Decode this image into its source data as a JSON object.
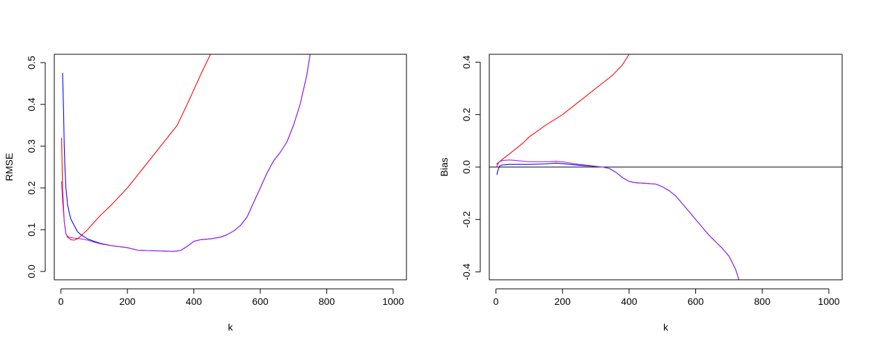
{
  "chart_data": [
    {
      "type": "line",
      "xlabel": "k",
      "ylabel": "RMSE",
      "xlim": [
        -20,
        1040
      ],
      "ylim": [
        -0.02,
        0.52
      ],
      "xticks": [
        0,
        200,
        400,
        600,
        800,
        1000
      ],
      "yticks": [
        0.0,
        0.1,
        0.2,
        0.3,
        0.4,
        0.5
      ],
      "xtick_labels": [
        "0",
        "200",
        "400",
        "600",
        "800",
        "1000"
      ],
      "ytick_labels": [
        "0.0",
        "0.1",
        "0.2",
        "0.3",
        "0.4",
        "0.5"
      ],
      "grid": false,
      "series": [
        {
          "color": "#ff0000",
          "x": [
            2,
            5,
            10,
            15,
            20,
            30,
            40,
            50,
            60,
            80,
            100,
            120,
            150,
            200,
            250,
            300,
            350,
            380,
            400,
            420,
            450
          ],
          "y": [
            0.32,
            0.2,
            0.12,
            0.09,
            0.082,
            0.076,
            0.075,
            0.078,
            0.085,
            0.1,
            0.118,
            0.135,
            0.158,
            0.2,
            0.25,
            0.3,
            0.35,
            0.4,
            0.435,
            0.47,
            0.52
          ]
        },
        {
          "color": "#0000ff",
          "x": [
            5,
            8,
            10,
            12,
            15,
            20,
            25,
            30,
            40,
            50,
            60,
            80,
            100,
            120,
            150,
            200,
            230,
            260,
            300,
            340,
            360,
            380,
            400,
            420,
            450,
            480,
            500,
            520,
            540,
            560,
            580,
            600,
            620,
            640,
            660,
            680,
            700,
            720,
            740,
            750
          ],
          "y": [
            0.475,
            0.38,
            0.3,
            0.25,
            0.2,
            0.16,
            0.14,
            0.125,
            0.11,
            0.095,
            0.088,
            0.078,
            0.072,
            0.067,
            0.062,
            0.057,
            0.051,
            0.05,
            0.049,
            0.048,
            0.05,
            0.06,
            0.072,
            0.076,
            0.078,
            0.082,
            0.088,
            0.097,
            0.11,
            0.13,
            0.165,
            0.2,
            0.235,
            0.265,
            0.285,
            0.31,
            0.35,
            0.4,
            0.47,
            0.52
          ]
        },
        {
          "color": "#a020f0",
          "x": [
            2,
            5,
            10,
            15,
            20,
            25,
            30,
            40,
            50,
            60,
            80,
            100,
            120,
            150,
            200,
            230,
            260,
            300,
            340,
            360,
            380,
            400,
            420,
            450,
            480,
            500,
            520,
            540,
            560,
            580,
            600,
            620,
            640,
            660,
            680,
            700,
            720,
            740,
            750
          ],
          "y": [
            0.215,
            0.17,
            0.12,
            0.09,
            0.084,
            0.082,
            0.081,
            0.08,
            0.079,
            0.078,
            0.075,
            0.07,
            0.066,
            0.062,
            0.057,
            0.051,
            0.05,
            0.049,
            0.048,
            0.05,
            0.06,
            0.072,
            0.076,
            0.078,
            0.082,
            0.088,
            0.097,
            0.11,
            0.13,
            0.165,
            0.2,
            0.235,
            0.265,
            0.285,
            0.31,
            0.35,
            0.4,
            0.47,
            0.52
          ]
        }
      ]
    },
    {
      "type": "line",
      "xlabel": "k",
      "ylabel": "Bias",
      "xlim": [
        -20,
        1040
      ],
      "ylim": [
        -0.43,
        0.43
      ],
      "xticks": [
        0,
        200,
        400,
        600,
        800,
        1000
      ],
      "yticks": [
        -0.4,
        -0.2,
        0.0,
        0.2,
        0.4
      ],
      "xtick_labels": [
        "0",
        "200",
        "400",
        "600",
        "800",
        "1000"
      ],
      "ytick_labels": [
        "-0.4",
        "-0.2",
        "0.0",
        "0.2",
        "0.4"
      ],
      "grid": false,
      "hline": 0,
      "series": [
        {
          "color": "#ff0000",
          "x": [
            2,
            5,
            10,
            20,
            30,
            50,
            80,
            100,
            150,
            200,
            250,
            300,
            350,
            380,
            400
          ],
          "y": [
            0.0,
            0.01,
            0.02,
            0.03,
            0.04,
            0.06,
            0.09,
            0.115,
            0.16,
            0.2,
            0.25,
            0.3,
            0.35,
            0.39,
            0.43
          ]
        },
        {
          "color": "#0000ff",
          "x": [
            3,
            5,
            8,
            12,
            20,
            40,
            60,
            100,
            150,
            180,
            200,
            250,
            300,
            320,
            340,
            360,
            380,
            400,
            420,
            450,
            480,
            500,
            520,
            540,
            560,
            580,
            600,
            620,
            640,
            660,
            680,
            700,
            720,
            730
          ],
          "y": [
            -0.03,
            -0.015,
            -0.005,
            0.005,
            0.008,
            0.01,
            0.01,
            0.01,
            0.012,
            0.015,
            0.013,
            0.007,
            0.002,
            0.0,
            -0.005,
            -0.02,
            -0.04,
            -0.055,
            -0.06,
            -0.062,
            -0.065,
            -0.075,
            -0.09,
            -0.11,
            -0.14,
            -0.17,
            -0.2,
            -0.23,
            -0.26,
            -0.285,
            -0.31,
            -0.34,
            -0.39,
            -0.43
          ]
        },
        {
          "color": "#a020f0",
          "x": [
            2,
            5,
            10,
            20,
            40,
            60,
            100,
            150,
            180,
            200,
            250,
            300,
            320,
            340,
            360,
            380,
            400,
            420,
            450,
            480,
            500,
            520,
            540,
            560,
            580,
            600,
            620,
            640,
            660,
            680,
            700,
            720,
            730
          ],
          "y": [
            0.01,
            0.015,
            0.02,
            0.025,
            0.027,
            0.025,
            0.02,
            0.02,
            0.022,
            0.02,
            0.01,
            0.003,
            0.0,
            -0.005,
            -0.02,
            -0.04,
            -0.055,
            -0.06,
            -0.062,
            -0.065,
            -0.075,
            -0.09,
            -0.11,
            -0.14,
            -0.17,
            -0.2,
            -0.23,
            -0.26,
            -0.285,
            -0.31,
            -0.34,
            -0.39,
            -0.43
          ]
        }
      ]
    }
  ]
}
